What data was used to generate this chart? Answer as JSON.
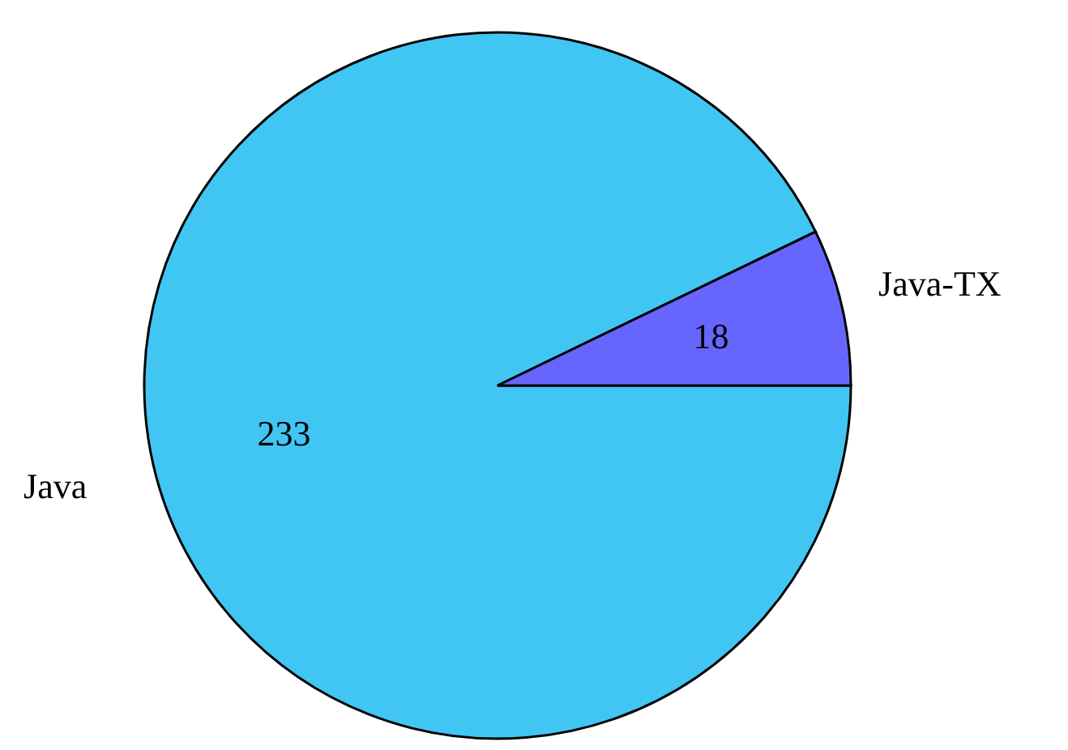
{
  "chart_data": {
    "type": "pie",
    "categories": [
      "Java",
      "Java-TX"
    ],
    "values": [
      233,
      18
    ],
    "colors": [
      "#41c6f4",
      "#6666ff"
    ],
    "data_labels": true,
    "legend": false
  }
}
